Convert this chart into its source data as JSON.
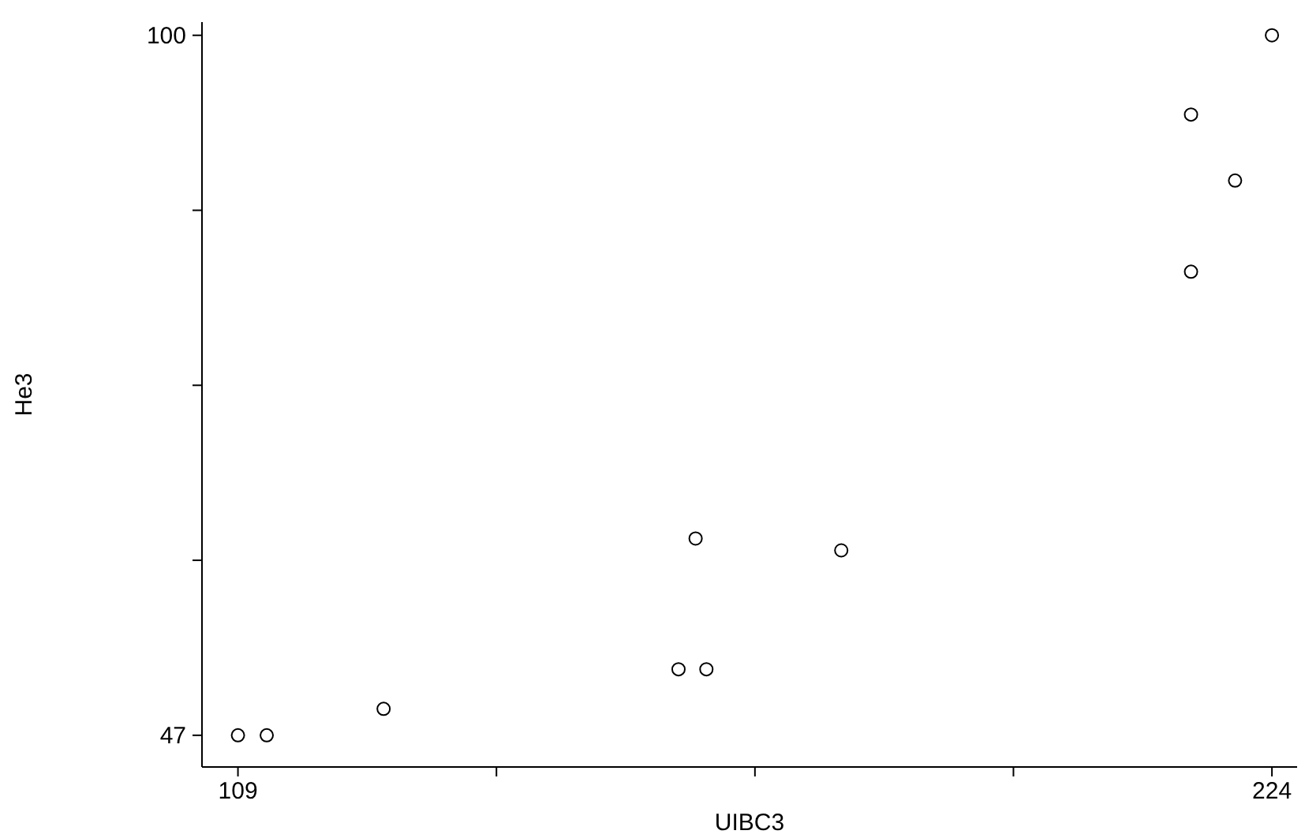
{
  "chart_data": {
    "type": "scatter",
    "xlabel": "UIBC3",
    "ylabel": "He3",
    "x": [
      109,
      112.2,
      125.2,
      158,
      161.1,
      159.9,
      176.1,
      215,
      215,
      219.9,
      224
    ],
    "values": [
      47,
      47,
      49,
      52,
      52,
      61.9,
      61,
      82.1,
      94,
      89,
      100
    ],
    "color": "#000000",
    "marker": "circle",
    "grid": false,
    "xlim": [
      105,
      226.8
    ],
    "ylim": [
      44.6,
      101
    ],
    "xticks": [
      109,
      {
        "value": 137.75,
        "label": null
      },
      {
        "value": 166.5,
        "label": null
      },
      {
        "value": 195.25,
        "label": null
      },
      224
    ],
    "yticks": [
      47,
      {
        "value": 60.25,
        "label": null
      },
      {
        "value": 73.5,
        "label": null
      },
      {
        "value": 86.75,
        "label": null
      },
      100
    ]
  }
}
